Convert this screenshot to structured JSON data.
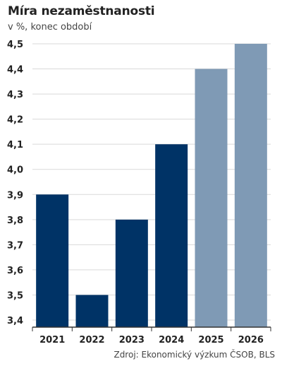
{
  "title": "Míra nezaměstnanosti",
  "subtitle": "v %, konec období",
  "source": "Zdroj: Ekonomický výzkum ČSOB, BLS",
  "colors": {
    "actual": "#003366",
    "forecast": "#7f9ab5",
    "grid": "#d9d9d9",
    "axis": "#333333"
  },
  "chart_data": {
    "type": "bar",
    "categories": [
      "2021",
      "2022",
      "2023",
      "2024",
      "2025",
      "2026"
    ],
    "values": [
      3.9,
      3.5,
      3.8,
      4.1,
      4.4,
      4.5
    ],
    "forecast": [
      false,
      false,
      false,
      false,
      true,
      true
    ],
    "title": "Míra nezaměstnanosti",
    "subtitle": "v %, konec období",
    "ylim": [
      3.4,
      4.5
    ],
    "yticks": [
      "3,4",
      "3,5",
      "3,6",
      "3,7",
      "3,8",
      "3,9",
      "4,0",
      "4,1",
      "4,2",
      "4,3",
      "4,4",
      "4,5"
    ],
    "grid": true,
    "legend": "none"
  }
}
